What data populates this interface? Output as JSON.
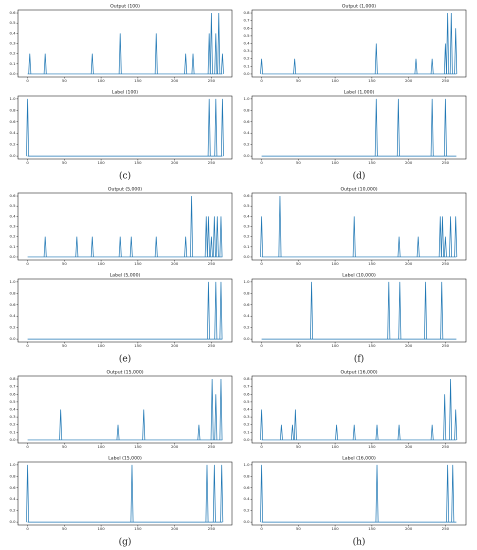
{
  "panel_labels": [
    "(c)",
    "(d)",
    "(e)",
    "(f)",
    "(g)",
    "(h)"
  ],
  "chart_data": [
    {
      "type": "spike",
      "title": "Output (100)",
      "x": [
        3,
        24,
        88,
        126,
        175,
        215,
        225,
        247,
        250,
        256,
        260,
        265
      ],
      "values": [
        0.2,
        0.2,
        0.2,
        0.4,
        0.4,
        0.2,
        0.2,
        0.4,
        0.6,
        0.4,
        0.6,
        0.2
      ],
      "color": "#1f77b4",
      "xlim": [
        -13,
        278
      ],
      "xticks": [
        0,
        50,
        100,
        150,
        200,
        250
      ],
      "ylim": [
        -0.03,
        0.63
      ],
      "yticks": [
        {
          "value": 0,
          "label": "0.0"
        },
        0.1,
        0.2,
        0.3,
        0.4,
        0.5,
        0.6
      ]
    },
    {
      "type": "spike",
      "title": "Label (100)",
      "x": [
        0,
        247,
        256,
        265
      ],
      "values": [
        1,
        1,
        1,
        1
      ],
      "color": "#1f77b4",
      "xlim": [
        -13,
        278
      ],
      "xticks": [
        0,
        50,
        100,
        150,
        200,
        250
      ],
      "ylim": [
        -0.05,
        1.05
      ],
      "yticks": [
        {
          "value": 0,
          "label": "0.0"
        },
        0.2,
        0.4,
        0.6,
        0.8,
        {
          "value": 1,
          "label": "1.0"
        }
      ]
    },
    {
      "type": "spike",
      "title": "Output (1,000)",
      "x": [
        0,
        45,
        156,
        210,
        232,
        250,
        253,
        258,
        264
      ],
      "values": [
        0.2,
        0.2,
        0.4,
        0.2,
        0.2,
        0.4,
        0.8,
        0.8,
        0.6
      ],
      "color": "#1f77b4",
      "xlim": [
        -13,
        278
      ],
      "xticks": [
        0,
        50,
        100,
        150,
        200,
        250
      ],
      "ylim": [
        -0.04,
        0.84
      ],
      "yticks": [
        {
          "value": 0,
          "label": "0.0"
        },
        0.1,
        0.2,
        0.3,
        0.4,
        0.5,
        0.6,
        0.7,
        0.8
      ]
    },
    {
      "type": "spike",
      "title": "Label (1,000)",
      "x": [
        156,
        186,
        232,
        250
      ],
      "values": [
        1,
        1,
        1,
        1
      ],
      "color": "#1f77b4",
      "xlim": [
        -13,
        278
      ],
      "xticks": [
        0,
        50,
        100,
        150,
        200,
        250
      ],
      "ylim": [
        -0.05,
        1.05
      ],
      "yticks": [
        {
          "value": 0,
          "label": "0.0"
        },
        0.2,
        0.4,
        0.6,
        0.8,
        {
          "value": 1,
          "label": "1.0"
        }
      ]
    },
    {
      "type": "spike",
      "title": "Output (5,000)",
      "x": [
        24,
        67,
        88,
        126,
        141,
        175,
        215,
        223,
        243,
        246,
        250,
        254,
        258,
        263
      ],
      "values": [
        0.2,
        0.2,
        0.2,
        0.2,
        0.2,
        0.2,
        0.2,
        0.6,
        0.4,
        0.4,
        0.2,
        0.4,
        0.4,
        0.4
      ],
      "color": "#1f77b4",
      "xlim": [
        -13,
        278
      ],
      "xticks": [
        0,
        50,
        100,
        150,
        200,
        250
      ],
      "ylim": [
        -0.03,
        0.63
      ],
      "yticks": [
        {
          "value": 0,
          "label": "0.0"
        },
        0.1,
        0.2,
        0.3,
        0.4,
        0.5,
        0.6
      ]
    },
    {
      "type": "spike",
      "title": "Label (5,000)",
      "x": [
        246,
        256,
        263
      ],
      "values": [
        1,
        1,
        1
      ],
      "color": "#1f77b4",
      "xlim": [
        -13,
        278
      ],
      "xticks": [
        0,
        50,
        100,
        150,
        200,
        250
      ],
      "ylim": [
        -0.05,
        1.05
      ],
      "yticks": [
        {
          "value": 0,
          "label": "0.0"
        },
        0.2,
        0.4,
        0.6,
        0.8,
        {
          "value": 1,
          "label": "1.0"
        }
      ]
    },
    {
      "type": "spike",
      "title": "Output (10,000)",
      "x": [
        0,
        25,
        126,
        187,
        213,
        243,
        246,
        250,
        257,
        264
      ],
      "values": [
        0.4,
        0.6,
        0.4,
        0.2,
        0.2,
        0.4,
        0.4,
        0.2,
        0.4,
        0.4
      ],
      "color": "#1f77b4",
      "xlim": [
        -13,
        278
      ],
      "xticks": [
        0,
        50,
        100,
        150,
        200,
        250
      ],
      "ylim": [
        -0.03,
        0.63
      ],
      "yticks": [
        {
          "value": 0,
          "label": "0.0"
        },
        0.1,
        0.2,
        0.3,
        0.4,
        0.5,
        0.6
      ]
    },
    {
      "type": "spike",
      "title": "Label (10,000)",
      "x": [
        68,
        173,
        188,
        223,
        245
      ],
      "values": [
        1,
        1,
        1,
        1,
        1
      ],
      "color": "#1f77b4",
      "xlim": [
        -13,
        278
      ],
      "xticks": [
        0,
        50,
        100,
        150,
        200,
        250
      ],
      "ylim": [
        -0.05,
        1.05
      ],
      "yticks": [
        {
          "value": 0,
          "label": "0.0"
        },
        0.2,
        0.4,
        0.6,
        0.8,
        {
          "value": 1,
          "label": "1.0"
        }
      ]
    },
    {
      "type": "spike",
      "title": "Output (15,000)",
      "x": [
        45,
        123,
        158,
        233,
        251,
        256,
        263
      ],
      "values": [
        0.4,
        0.2,
        0.4,
        0.2,
        0.8,
        0.6,
        0.8
      ],
      "color": "#1f77b4",
      "xlim": [
        -13,
        278
      ],
      "xticks": [
        0,
        50,
        100,
        150,
        200,
        250
      ],
      "ylim": [
        -0.04,
        0.84
      ],
      "yticks": [
        {
          "value": 0,
          "label": "0.0"
        },
        0.1,
        0.2,
        0.3,
        0.4,
        0.5,
        0.6,
        0.7,
        0.8
      ]
    },
    {
      "type": "spike",
      "title": "Label (15,000)",
      "x": [
        0,
        142,
        244,
        254,
        264
      ],
      "values": [
        1,
        1,
        1,
        1,
        1
      ],
      "color": "#1f77b4",
      "xlim": [
        -13,
        278
      ],
      "xticks": [
        0,
        50,
        100,
        150,
        200,
        250
      ],
      "ylim": [
        -0.05,
        1.05
      ],
      "yticks": [
        {
          "value": 0,
          "label": "0.0"
        },
        0.2,
        0.4,
        0.6,
        0.8,
        {
          "value": 1,
          "label": "1.0"
        }
      ]
    },
    {
      "type": "spike",
      "title": "Output (16,000)",
      "x": [
        0,
        27,
        42,
        46,
        102,
        126,
        157,
        187,
        232,
        249,
        257,
        264
      ],
      "values": [
        0.4,
        0.2,
        0.2,
        0.4,
        0.2,
        0.2,
        0.2,
        0.2,
        0.2,
        0.6,
        0.8,
        0.4
      ],
      "color": "#1f77b4",
      "xlim": [
        -13,
        278
      ],
      "xticks": [
        0,
        50,
        100,
        150,
        200,
        250
      ],
      "ylim": [
        -0.04,
        0.84
      ],
      "yticks": [
        {
          "value": 0,
          "label": "0.0"
        },
        0.1,
        0.2,
        0.3,
        0.4,
        0.5,
        0.6,
        0.7,
        0.8
      ]
    },
    {
      "type": "spike",
      "title": "Label (16,000)",
      "x": [
        0,
        157,
        253,
        260
      ],
      "values": [
        1,
        1,
        1,
        1
      ],
      "color": "#1f77b4",
      "xlim": [
        -13,
        278
      ],
      "xticks": [
        0,
        50,
        100,
        150,
        200,
        250
      ],
      "ylim": [
        -0.05,
        1.05
      ],
      "yticks": [
        {
          "value": 0,
          "label": "0.0"
        },
        0.2,
        0.4,
        0.6,
        0.8,
        {
          "value": 1,
          "label": "1.0"
        }
      ]
    }
  ]
}
